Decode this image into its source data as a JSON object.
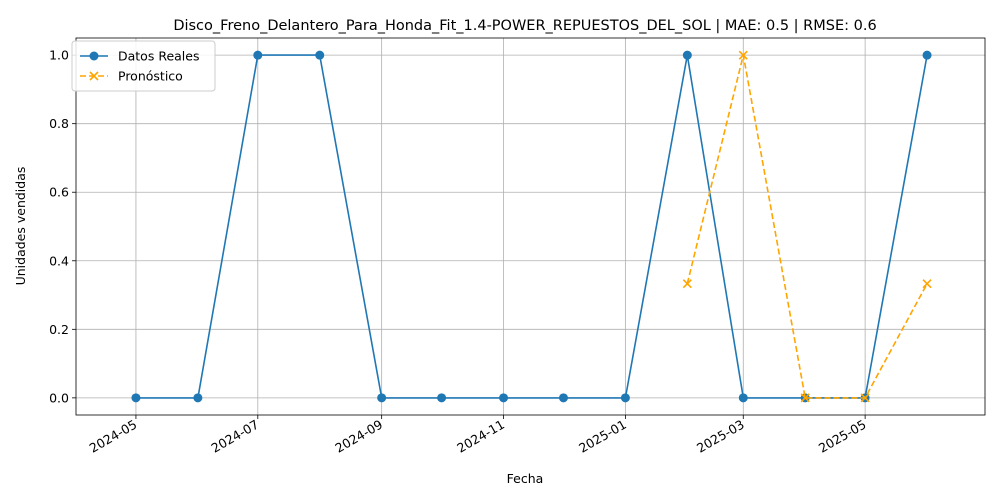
{
  "chart_data": {
    "type": "line",
    "title": "Disco_Freno_Delantero_Para_Honda_Fit_1.4-POWER_REPUESTOS_DEL_SOL | MAE: 0.5 | RMSE: 0.6",
    "xlabel": "Fecha",
    "ylabel": "Unidades vendidas",
    "xlim": [
      "2024-04-01",
      "2025-06-30"
    ],
    "ylim": [
      -0.05,
      1.05
    ],
    "x_tick_labels": [
      "2024-05",
      "2024-07",
      "2024-09",
      "2024-11",
      "2025-01",
      "2025-03",
      "2025-05"
    ],
    "x_tick_dates": [
      "2024-05-01",
      "2024-07-01",
      "2024-09-01",
      "2024-11-01",
      "2025-01-01",
      "2025-03-01",
      "2025-05-01"
    ],
    "y_ticks": [
      0.0,
      0.2,
      0.4,
      0.6,
      0.8,
      1.0
    ],
    "y_tick_labels": [
      "0.0",
      "0.2",
      "0.4",
      "0.6",
      "0.8",
      "1.0"
    ],
    "grid": true,
    "legend_position": "top-left",
    "series": [
      {
        "name": "Datos Reales",
        "color": "#1f77b4",
        "style": "solid",
        "marker": "circle",
        "x": [
          "2024-05-01",
          "2024-06-01",
          "2024-07-01",
          "2024-08-01",
          "2024-09-01",
          "2024-10-01",
          "2024-11-01",
          "2024-12-01",
          "2025-01-01",
          "2025-02-01",
          "2025-03-01",
          "2025-04-01",
          "2025-05-01",
          "2025-06-01"
        ],
        "y": [
          0,
          0,
          1,
          1,
          0,
          0,
          0,
          0,
          0,
          1,
          0,
          0,
          0,
          1
        ]
      },
      {
        "name": "Pronóstico",
        "color": "#ffa500",
        "style": "dashed",
        "marker": "x",
        "x": [
          "2025-02-01",
          "2025-03-01",
          "2025-04-01",
          "2025-05-01",
          "2025-06-01"
        ],
        "y": [
          0.333,
          1.0,
          0.0,
          0.0,
          0.333
        ]
      }
    ]
  }
}
